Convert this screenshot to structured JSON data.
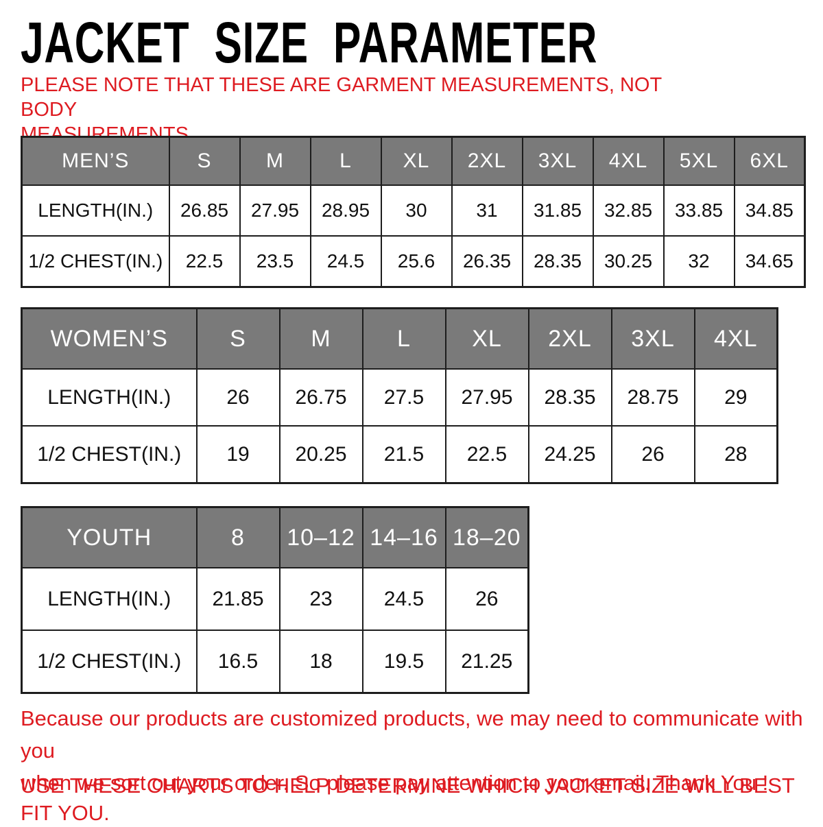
{
  "page": {
    "title": "JACKET SIZE PARAMETER",
    "note": {
      "line1": "PLEASE NOTE THAT THESE ARE GARMENT MEASUREMENTS, NOT BODY",
      "line2": "MEASUREMENTS"
    },
    "footer": {
      "paragraph_line1": "Because our products are customized products, we may need to communicate with you",
      "paragraph_line2": "when we sort out your order. So please pay attention to your email. Thank You !",
      "advice": "USE THESE CHARTS TO HELP DETERMINE WHICH JACKET SIZE WILL BEST FIT YOU."
    },
    "colors": {
      "accent_red": "#de1b21",
      "header_gray": "#7a7a7a",
      "table_border": "#1d1d1d"
    }
  },
  "tables": [
    {
      "id": "mens",
      "title": "MEN’S",
      "sizes": [
        "S",
        "M",
        "L",
        "XL",
        "2XL",
        "3XL",
        "4XL",
        "5XL",
        "6XL"
      ],
      "rows": [
        {
          "label": "LENGTH(IN.)",
          "values": [
            "26.85",
            "27.95",
            "28.95",
            "30",
            "31",
            "31.85",
            "32.85",
            "33.85",
            "34.85"
          ]
        },
        {
          "label": "1/2 CHEST(IN.)",
          "values": [
            "22.5",
            "23.5",
            "24.5",
            "25.6",
            "26.35",
            "28.35",
            "30.25",
            "32",
            "34.65"
          ]
        }
      ]
    },
    {
      "id": "womens",
      "title": "WOMEN’S",
      "sizes": [
        "S",
        "M",
        "L",
        "XL",
        "2XL",
        "3XL",
        "4XL"
      ],
      "rows": [
        {
          "label": "LENGTH(IN.)",
          "values": [
            "26",
            "26.75",
            "27.5",
            "27.95",
            "28.35",
            "28.75",
            "29"
          ]
        },
        {
          "label": "1/2 CHEST(IN.)",
          "values": [
            "19",
            "20.25",
            "21.5",
            "22.5",
            "24.25",
            "26",
            "28"
          ]
        }
      ]
    },
    {
      "id": "youth",
      "title": "YOUTH",
      "sizes": [
        "8",
        "10–12",
        "14–16",
        "18–20"
      ],
      "rows": [
        {
          "label": "LENGTH(IN.)",
          "values": [
            "21.85",
            "23",
            "24.5",
            "26"
          ]
        },
        {
          "label": "1/2 CHEST(IN.)",
          "values": [
            "16.5",
            "18",
            "19.5",
            "21.25"
          ]
        }
      ]
    }
  ],
  "chart_data": [
    {
      "type": "table",
      "title": "MEN’S",
      "columns": [
        "S",
        "M",
        "L",
        "XL",
        "2XL",
        "3XL",
        "4XL",
        "5XL",
        "6XL"
      ],
      "series": [
        {
          "name": "LENGTH(IN.)",
          "values": [
            26.85,
            27.95,
            28.95,
            30,
            31,
            31.85,
            32.85,
            33.85,
            34.85
          ]
        },
        {
          "name": "1/2 CHEST(IN.)",
          "values": [
            22.5,
            23.5,
            24.5,
            25.6,
            26.35,
            28.35,
            30.25,
            32,
            34.65
          ]
        }
      ]
    },
    {
      "type": "table",
      "title": "WOMEN’S",
      "columns": [
        "S",
        "M",
        "L",
        "XL",
        "2XL",
        "3XL",
        "4XL"
      ],
      "series": [
        {
          "name": "LENGTH(IN.)",
          "values": [
            26,
            26.75,
            27.5,
            27.95,
            28.35,
            28.75,
            29
          ]
        },
        {
          "name": "1/2 CHEST(IN.)",
          "values": [
            19,
            20.25,
            21.5,
            22.5,
            24.25,
            26,
            28
          ]
        }
      ]
    },
    {
      "type": "table",
      "title": "YOUTH",
      "columns": [
        "8",
        "10–12",
        "14–16",
        "18–20"
      ],
      "series": [
        {
          "name": "LENGTH(IN.)",
          "values": [
            21.85,
            23,
            24.5,
            26
          ]
        },
        {
          "name": "1/2 CHEST(IN.)",
          "values": [
            16.5,
            18,
            19.5,
            21.25
          ]
        }
      ]
    }
  ]
}
